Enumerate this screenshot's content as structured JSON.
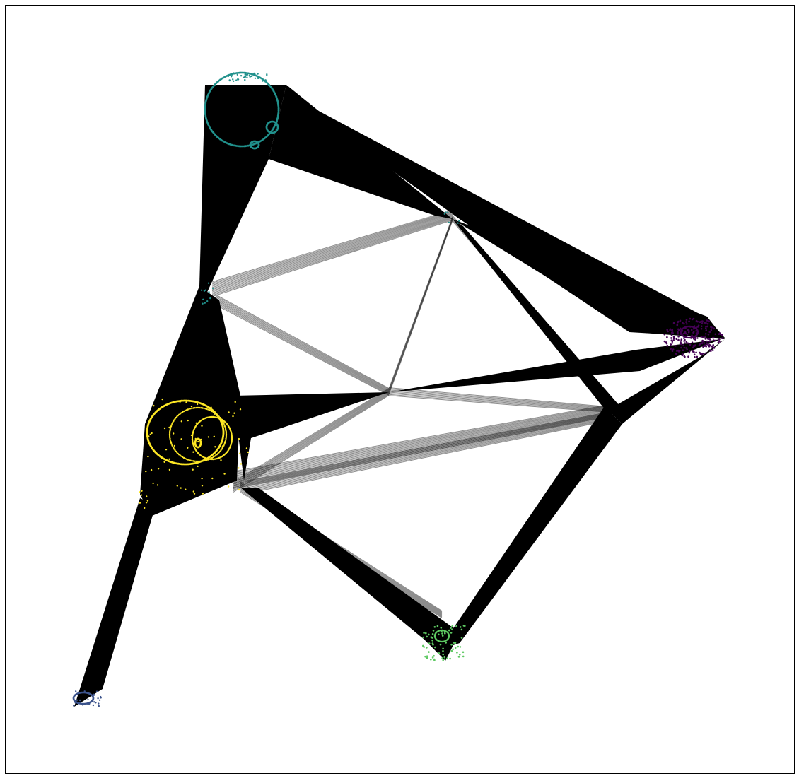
{
  "figure": {
    "kind": "network-graph",
    "frame": true,
    "edge_color": "#000000",
    "background": "#ffffff"
  },
  "clusters": [
    {
      "id": "purple-cluster",
      "color": "#440154",
      "shape": "blob"
    },
    {
      "id": "blue-cluster",
      "color": "#3b528b",
      "shape": "small-loop"
    },
    {
      "id": "teal-cluster",
      "color": "#21918c",
      "shape": "ring"
    },
    {
      "id": "green-cluster",
      "color": "#5ec962",
      "shape": "scatter"
    },
    {
      "id": "yellow-cluster",
      "color": "#fde725",
      "shape": "spiral"
    }
  ]
}
